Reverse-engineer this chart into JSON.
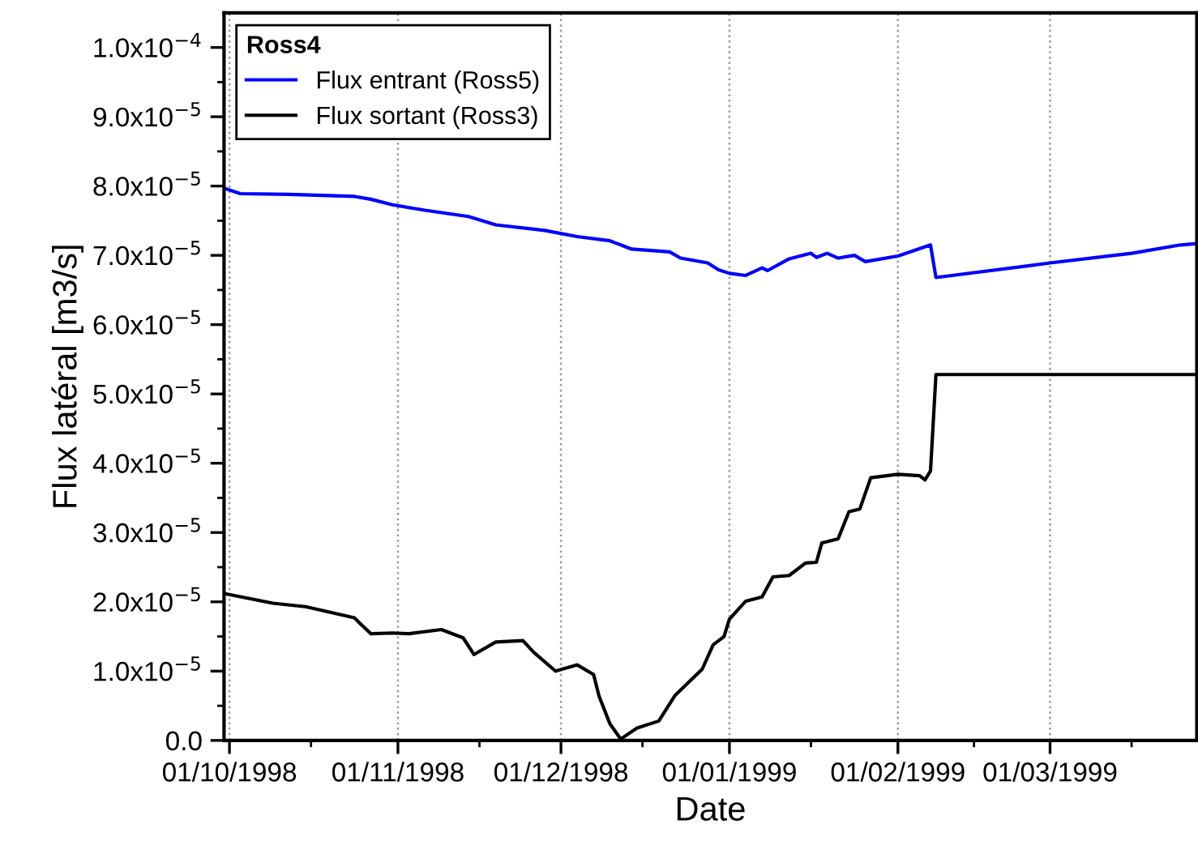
{
  "chart_data": {
    "type": "line",
    "xlabel": "Date",
    "ylabel": "Flux latéral [m3/s]",
    "legend_title": "Ross4",
    "legend": "top left",
    "grid": "x",
    "line_style": "solid",
    "marker": "none",
    "xlim": [
      "1998-09-30",
      "1999-03-28"
    ],
    "xticks": [
      {
        "value": "1998-10-01",
        "label": "01/10/1998"
      },
      {
        "value": "1998-11-01",
        "label": "01/11/1998"
      },
      {
        "value": "1998-12-01",
        "label": "01/12/1998"
      },
      {
        "value": "1999-01-01",
        "label": "01/01/1999"
      },
      {
        "value": "1999-02-01",
        "label": "01/02/1999"
      },
      {
        "value": "1999-03-01",
        "label": "01/03/1999"
      },
      {
        "value": "1998-10-16",
        "label": null
      },
      {
        "value": "1998-11-16",
        "label": null
      },
      {
        "value": "1998-12-16",
        "label": null
      },
      {
        "value": "1999-01-16",
        "label": null
      },
      {
        "value": "1999-02-15",
        "label": null
      },
      {
        "value": "1999-03-16",
        "label": null
      }
    ],
    "ylim": [
      0,
      0.000105
    ],
    "yticks": [
      {
        "value": 0,
        "label": "0.0"
      },
      {
        "value": 1e-05,
        "label": "1.0x10$^{−5}$"
      },
      {
        "value": 2e-05,
        "label": "2.0x10$^{−5}$"
      },
      {
        "value": 3e-05,
        "label": "3.0x10$^{−5}$"
      },
      {
        "value": 4e-05,
        "label": "4.0x10$^{−5}$"
      },
      {
        "value": 5e-05,
        "label": "5.0x10$^{−5}$"
      },
      {
        "value": 6e-05,
        "label": "6.0x10$^{−5}$"
      },
      {
        "value": 7e-05,
        "label": "7.0x10$^{−5}$"
      },
      {
        "value": 8e-05,
        "label": "8.0x10$^{−5}$"
      },
      {
        "value": 9e-05,
        "label": "9.0x10$^{−5}$"
      },
      {
        "value": 0.0001,
        "label": "1.0x10$^{−4}$"
      },
      {
        "value": 5e-06,
        "label": null
      },
      {
        "value": 1.5e-05,
        "label": null
      },
      {
        "value": 2.5e-05,
        "label": null
      },
      {
        "value": 3.5e-05,
        "label": null
      },
      {
        "value": 4.5e-05,
        "label": null
      },
      {
        "value": 5.5e-05,
        "label": null
      },
      {
        "value": 6.5e-05,
        "label": null
      },
      {
        "value": 7.5e-05,
        "label": null
      },
      {
        "value": 8.5e-05,
        "label": null
      },
      {
        "value": 9.5e-05,
        "label": null
      }
    ],
    "series": [
      {
        "name": "Flux entrant (Ross5)",
        "color": "#0000ff",
        "x": [
          "1998-09-30",
          "1998-10-03",
          "1998-10-12",
          "1998-10-24",
          "1998-10-27",
          "1998-10-31",
          "1998-11-06",
          "1998-11-14",
          "1998-11-19",
          "1998-11-28",
          "1998-12-04",
          "1998-12-10",
          "1998-12-14",
          "1998-12-21",
          "1998-12-23",
          "1998-12-28",
          "1998-12-30",
          "1999-01-01",
          "1999-01-04",
          "1999-01-07",
          "1999-01-08",
          "1999-01-12",
          "1999-01-16",
          "1999-01-17",
          "1999-01-19",
          "1999-01-21",
          "1999-01-24",
          "1999-01-26",
          "1999-02-01",
          "1999-02-07",
          "1999-02-08",
          "1999-03-01",
          "1999-03-16",
          "1999-03-25",
          "1999-03-28"
        ],
        "values": [
          7.97e-05,
          7.89e-05,
          7.88e-05,
          7.85e-05,
          7.81e-05,
          7.73e-05,
          7.65e-05,
          7.56e-05,
          7.44e-05,
          7.36e-05,
          7.27e-05,
          7.21e-05,
          7.09e-05,
          7.05e-05,
          6.96e-05,
          6.89e-05,
          6.79e-05,
          6.74e-05,
          6.71e-05,
          6.82e-05,
          6.78e-05,
          6.95e-05,
          7.03e-05,
          6.97e-05,
          7.03e-05,
          6.96e-05,
          7e-05,
          6.91e-05,
          6.99e-05,
          7.15e-05,
          6.68e-05,
          6.89e-05,
          7.03e-05,
          7.15e-05,
          7.17e-05
        ]
      },
      {
        "name": "Flux sortant (Ross3)",
        "color": "#000000",
        "x": [
          "1998-09-30",
          "1998-10-09",
          "1998-10-15",
          "1998-10-24",
          "1998-10-25",
          "1998-10-27",
          "1998-10-31",
          "1998-11-03",
          "1998-11-09",
          "1998-11-13",
          "1998-11-15",
          "1998-11-19",
          "1998-11-24",
          "1998-11-26",
          "1998-11-30",
          "1998-12-04",
          "1998-12-07",
          "1998-12-08",
          "1998-12-10",
          "1998-12-12",
          "1998-12-15",
          "1998-12-19",
          "1998-12-22",
          "1998-12-27",
          "1998-12-29",
          "1998-12-31",
          "1999-01-01",
          "1999-01-04",
          "1999-01-07",
          "1999-01-09",
          "1999-01-12",
          "1999-01-15",
          "1999-01-17",
          "1999-01-18",
          "1999-01-21",
          "1999-01-23",
          "1999-01-25",
          "1999-01-27",
          "1999-02-01",
          "1999-02-05",
          "1999-02-06",
          "1999-02-07",
          "1999-02-08",
          "1999-03-28"
        ],
        "values": [
          2.12e-05,
          1.98e-05,
          1.93e-05,
          1.77e-05,
          1.69e-05,
          1.54e-05,
          1.55e-05,
          1.54e-05,
          1.6e-05,
          1.48e-05,
          1.24e-05,
          1.42e-05,
          1.44e-05,
          1.27e-05,
          1e-05,
          1.09e-05,
          9.5e-06,
          6.4e-06,
          2.4e-06,
          2e-07,
          1.8e-06,
          2.8e-06,
          6.5e-06,
          1.03e-05,
          1.38e-05,
          1.5e-05,
          1.75e-05,
          2.01e-05,
          2.07e-05,
          2.36e-05,
          2.38e-05,
          2.56e-05,
          2.57e-05,
          2.85e-05,
          2.91e-05,
          3.3e-05,
          3.34e-05,
          3.79e-05,
          3.84e-05,
          3.82e-05,
          3.76e-05,
          3.89e-05,
          5.28e-05,
          5.28e-05
        ]
      }
    ]
  }
}
